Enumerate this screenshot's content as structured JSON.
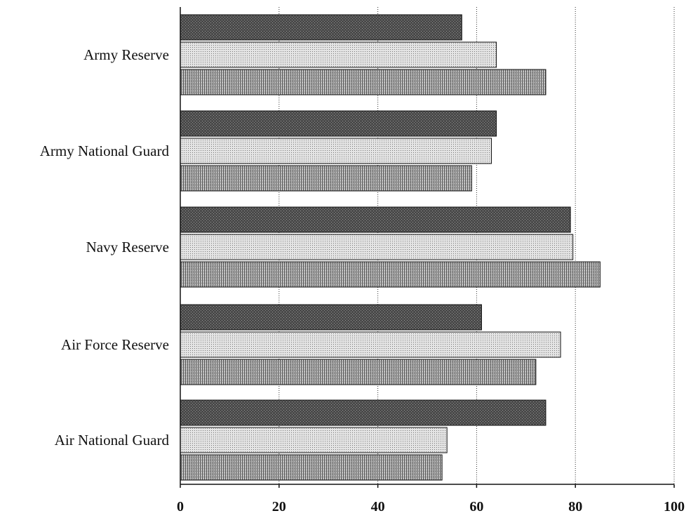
{
  "chart_data": {
    "type": "bar",
    "orientation": "horizontal",
    "categories": [
      "Army Reserve",
      "Army National Guard",
      "Navy Reserve",
      "Air Force Reserve",
      "Air National Guard"
    ],
    "series": [
      {
        "values": [
          57,
          64,
          79,
          61,
          74
        ],
        "color": "#555555",
        "pattern": "dark-stipple"
      },
      {
        "values": [
          64,
          63,
          79.5,
          77,
          54
        ],
        "color": "#d8d8d8",
        "pattern": "light-dots"
      },
      {
        "values": [
          74,
          59,
          85,
          72,
          53
        ],
        "color": "#9a9a9a",
        "pattern": "vertical-hatch"
      }
    ],
    "xlim": [
      0,
      100
    ],
    "xticks": [
      "0",
      "20",
      "40",
      "60",
      "80",
      "100"
    ],
    "grid": "vertical-dotted",
    "legend": "none"
  }
}
